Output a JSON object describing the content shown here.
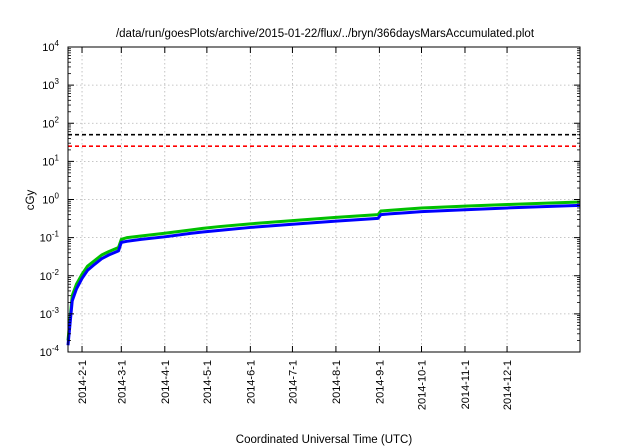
{
  "chart_data": {
    "type": "line",
    "title": "/data/run/goesPlots/archive/2015-01-22/flux/../bryn/366daysMarsAccumulated.plot",
    "xlabel": "Coordinated Universal Time (UTC)",
    "ylabel": "cGy",
    "x_range": [
      "2014-01-22",
      "2015-01-22"
    ],
    "y_scale": "log",
    "ylim": [
      0.0001,
      10000
    ],
    "y_ticks": [
      {
        "value": 0.0001,
        "base": "10",
        "exp": "-4"
      },
      {
        "value": 0.001,
        "base": "10",
        "exp": "-3"
      },
      {
        "value": 0.01,
        "base": "10",
        "exp": "-2"
      },
      {
        "value": 0.1,
        "base": "10",
        "exp": "-1"
      },
      {
        "value": 1,
        "base": "10",
        "exp": "0"
      },
      {
        "value": 10,
        "base": "10",
        "exp": "1"
      },
      {
        "value": 100,
        "base": "10",
        "exp": "2"
      },
      {
        "value": 1000,
        "base": "10",
        "exp": "3"
      },
      {
        "value": 10000,
        "base": "10",
        "exp": "4"
      }
    ],
    "x_ticks": [
      {
        "label": "2014-2-1",
        "date": "2014-02-01"
      },
      {
        "label": "2014-3-1",
        "date": "2014-03-01"
      },
      {
        "label": "2014-4-1",
        "date": "2014-04-01"
      },
      {
        "label": "2014-5-1",
        "date": "2014-05-01"
      },
      {
        "label": "2014-6-1",
        "date": "2014-06-01"
      },
      {
        "label": "2014-7-1",
        "date": "2014-07-01"
      },
      {
        "label": "2014-8-1",
        "date": "2014-08-01"
      },
      {
        "label": "2014-9-1",
        "date": "2014-09-01"
      },
      {
        "label": "2014-10-1",
        "date": "2014-10-01"
      },
      {
        "label": "2014-11-1",
        "date": "2014-11-01"
      },
      {
        "label": "2014-12-1",
        "date": "2014-12-01"
      }
    ],
    "grid": true,
    "reference_lines": [
      {
        "value": 50,
        "color": "#000000",
        "style": "dashed"
      },
      {
        "value": 25,
        "color": "#ff0000",
        "style": "dashed"
      }
    ],
    "series": [
      {
        "color": "#00c000",
        "x": [
          "2014-01-22",
          "2014-01-25",
          "2014-01-28",
          "2014-02-01",
          "2014-02-05",
          "2014-02-10",
          "2014-02-15",
          "2014-02-20",
          "2014-02-27",
          "2014-03-01",
          "2014-03-05",
          "2014-03-15",
          "2014-04-01",
          "2014-04-20",
          "2014-04-28",
          "2014-05-10",
          "2014-06-01",
          "2014-07-01",
          "2014-08-01",
          "2014-08-31",
          "2014-09-02",
          "2014-09-08",
          "2014-09-20",
          "2014-10-01",
          "2014-11-01",
          "2014-12-01",
          "2015-01-01",
          "2015-01-22"
        ],
        "y": [
          0.0002,
          0.003,
          0.006,
          0.011,
          0.018,
          0.025,
          0.035,
          0.043,
          0.055,
          0.09,
          0.1,
          0.11,
          0.13,
          0.16,
          0.175,
          0.195,
          0.23,
          0.28,
          0.34,
          0.4,
          0.5,
          0.52,
          0.56,
          0.6,
          0.67,
          0.74,
          0.81,
          0.86
        ]
      },
      {
        "color": "#0000ff",
        "x": [
          "2014-01-22",
          "2014-01-25",
          "2014-01-28",
          "2014-02-01",
          "2014-02-05",
          "2014-02-10",
          "2014-02-15",
          "2014-02-20",
          "2014-02-27",
          "2014-03-01",
          "2014-03-05",
          "2014-03-15",
          "2014-04-01",
          "2014-04-20",
          "2014-04-28",
          "2014-05-10",
          "2014-06-01",
          "2014-07-01",
          "2014-08-01",
          "2014-08-31",
          "2014-09-02",
          "2014-09-08",
          "2014-09-20",
          "2014-10-01",
          "2014-11-01",
          "2014-12-01",
          "2015-01-01",
          "2015-01-22"
        ],
        "y": [
          0.00015,
          0.0022,
          0.0045,
          0.0085,
          0.014,
          0.02,
          0.028,
          0.035,
          0.045,
          0.075,
          0.08,
          0.09,
          0.105,
          0.13,
          0.14,
          0.155,
          0.185,
          0.225,
          0.27,
          0.32,
          0.4,
          0.42,
          0.45,
          0.48,
          0.54,
          0.6,
          0.66,
          0.7
        ]
      }
    ]
  }
}
